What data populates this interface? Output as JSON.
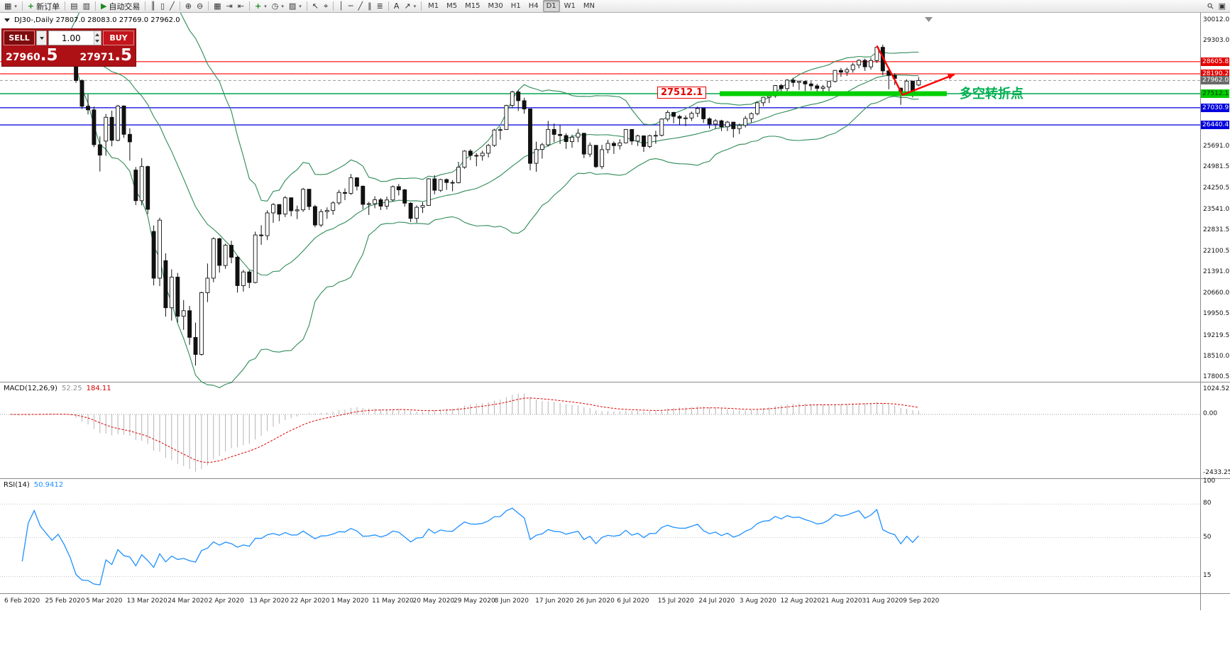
{
  "icons": {
    "dropdown": "▾"
  },
  "toolbar": {
    "items": [
      {
        "k": "btn",
        "name": "new-chart-button",
        "glyph": "▦",
        "dd": true
      },
      {
        "k": "sep"
      },
      {
        "k": "btn",
        "name": "new-order-button",
        "glyph": "+",
        "gc": "#1a8a1a",
        "label": "新订单"
      },
      {
        "k": "sep"
      },
      {
        "k": "btn",
        "name": "market-watch-button",
        "glyph": "▤"
      },
      {
        "k": "btn",
        "name": "data-window-button",
        "glyph": "▥"
      },
      {
        "k": "sep"
      },
      {
        "k": "btn",
        "name": "auto-trading-button",
        "glyph": "▶",
        "gc": "#1a8a1a",
        "label": "自动交易"
      },
      {
        "k": "sep"
      },
      {
        "k": "btn",
        "name": "bar-chart-type-button",
        "glyph": "║"
      },
      {
        "k": "btn",
        "name": "candlestick-type-button",
        "glyph": "▯"
      },
      {
        "k": "btn",
        "name": "line-chart-type-button",
        "glyph": "╱"
      },
      {
        "k": "sep"
      },
      {
        "k": "btn",
        "name": "zoom-in-button",
        "glyph": "⊕"
      },
      {
        "k": "btn",
        "name": "zoom-out-button",
        "glyph": "⊖"
      },
      {
        "k": "sep"
      },
      {
        "k": "btn",
        "name": "tile-windows-button",
        "glyph": "▦"
      },
      {
        "k": "btn",
        "name": "auto-scroll-button",
        "glyph": "⇥"
      },
      {
        "k": "btn",
        "name": "chart-shift-button",
        "glyph": "⇤"
      },
      {
        "k": "sep"
      },
      {
        "k": "btn",
        "name": "indicators-button",
        "glyph": "+",
        "gc": "#1a8a1a",
        "dd": true
      },
      {
        "k": "btn",
        "name": "periods-button",
        "glyph": "◷",
        "dd": true
      },
      {
        "k": "btn",
        "name": "templates-button",
        "glyph": "▨",
        "dd": true
      },
      {
        "k": "sep"
      },
      {
        "k": "btn",
        "name": "cursor-button",
        "glyph": "↖"
      },
      {
        "k": "btn",
        "name": "crosshair-button",
        "glyph": "⌖"
      },
      {
        "k": "sep"
      },
      {
        "k": "btn",
        "name": "vertical-line-button",
        "glyph": "│"
      },
      {
        "k": "btn",
        "name": "horizontal-line-button",
        "glyph": "─"
      },
      {
        "k": "btn",
        "name": "trendline-button",
        "glyph": "╱"
      },
      {
        "k": "btn",
        "name": "equidistant-channel-button",
        "glyph": "∥"
      },
      {
        "k": "btn",
        "name": "fibonacci-button",
        "glyph": "≣"
      },
      {
        "k": "sep"
      },
      {
        "k": "btn",
        "name": "text-tool-button",
        "glyph": "A"
      },
      {
        "k": "btn",
        "name": "arrows-tool-button",
        "glyph": "↗",
        "dd": true
      },
      {
        "k": "sep"
      },
      {
        "k": "tfs"
      },
      {
        "k": "flex"
      },
      {
        "k": "btn",
        "name": "search-button",
        "glyph": "⚲",
        "rot": true
      },
      {
        "k": "btn",
        "name": "window-layout-button",
        "glyph": "▣"
      }
    ],
    "timeframes": [
      "M1",
      "M5",
      "M15",
      "M30",
      "H1",
      "H4",
      "D1",
      "W1",
      "MN"
    ],
    "active_timeframe": "D1"
  },
  "chart": {
    "title": "DJ30-,Daily 27807.0 28083.0 27769.0 27962.0",
    "symbol": "DJ30-",
    "period": "Daily"
  },
  "one_click": {
    "sell_label": "SELL",
    "buy_label": "BUY",
    "volume": "1.00",
    "sell_price_main": "27960",
    "sell_price_frac": ".5",
    "buy_price_main": "27971",
    "buy_price_frac": ".5"
  },
  "price_axis": {
    "labels": [
      {
        "text": "30012.0",
        "price": 30012.0
      },
      {
        "text": "29303.0",
        "price": 29303.0
      },
      {
        "text": "25691.0",
        "price": 25691.0
      },
      {
        "text": "24981.5",
        "price": 24981.5
      },
      {
        "text": "24250.5",
        "price": 24250.5
      },
      {
        "text": "23541.0",
        "price": 23541.0
      },
      {
        "text": "22831.5",
        "price": 22831.5
      },
      {
        "text": "22100.5",
        "price": 22100.5
      },
      {
        "text": "21391.0",
        "price": 21391.0
      },
      {
        "text": "20660.0",
        "price": 20660.0
      },
      {
        "text": "19950.5",
        "price": 19950.5
      },
      {
        "text": "19219.5",
        "price": 19219.5
      },
      {
        "text": "18510.0",
        "price": 18510.0
      },
      {
        "text": "17800.5",
        "price": 17800.5
      }
    ],
    "badges": [
      {
        "text": "28605.8",
        "price": 28605.8,
        "bg": "#e30000",
        "fg": "#ffffff"
      },
      {
        "text": "28190.2",
        "price": 28190.2,
        "bg": "#e30000",
        "fg": "#ffffff"
      },
      {
        "text": "27962.0",
        "price": 27962.0,
        "bg": "#6b6b6b",
        "fg": "#ffffff"
      },
      {
        "text": "27512.1",
        "price": 27512.1,
        "bg": "#00cc00",
        "fg": "#00330a"
      },
      {
        "text": "27030.9",
        "price": 27030.9,
        "bg": "#0000dd",
        "fg": "#ffffff"
      },
      {
        "text": "26440.4",
        "price": 26440.4,
        "bg": "#0000dd",
        "fg": "#ffffff"
      }
    ]
  },
  "annotations": {
    "support_label": "27512.1",
    "note_text": "多空转折点",
    "note_color": "#00b050",
    "levels": {
      "red": [
        28605.8,
        28190.2
      ],
      "green": 27512.1,
      "blue": [
        27030.9,
        26440.4
      ],
      "current": 27962.0
    },
    "band": {
      "price": 27512.1,
      "from_index": 119,
      "to_index": 157,
      "color": "#00cf00"
    },
    "arrow": {
      "points": [
        [
          145,
          29150
        ],
        [
          149.3,
          27470
        ],
        [
          158,
          28170
        ]
      ],
      "color": "#ff0000"
    }
  },
  "macd": {
    "name": "MACD(12,26,9)",
    "main_value": "52.25",
    "signal_value": "184.11",
    "axis_labels": [
      "1024.52",
      "0.00",
      "-2433.25"
    ]
  },
  "rsi": {
    "name": "RSI(14)",
    "value": "50.9412",
    "axis_labels": [
      "100",
      "80",
      "50",
      "15"
    ],
    "levels": [
      80,
      50,
      15
    ]
  },
  "chart_data": {
    "type": "candlestick",
    "title": "DJ30- Daily",
    "ylim": [
      17690,
      30130
    ],
    "last_ohlc": {
      "open": 27807.0,
      "high": 28083.0,
      "low": 27769.0,
      "close": 27962.0
    },
    "overlays": [
      {
        "name": "Bollinger Bands",
        "period": 20,
        "deviation": 2,
        "color": "#2e8b57"
      }
    ],
    "sub_charts": [
      {
        "type": "macd",
        "params": "12,26,9",
        "shown_values": [
          52.25,
          184.11
        ],
        "range": [
          -2433.25,
          1024.52
        ]
      },
      {
        "type": "rsi",
        "params": "14",
        "shown_value": 50.9412,
        "range": [
          0,
          100
        ],
        "levels": [
          80,
          50,
          15
        ]
      }
    ],
    "x_labels": [
      "6 Feb 2020",
      "25 Feb 2020",
      "5 Mar 2020",
      "13 Mar 2020",
      "24 Mar 2020",
      "2 Apr 2020",
      "13 Apr 2020",
      "22 Apr 2020",
      "1 May 2020",
      "11 May 2020",
      "20 May 2020",
      "29 May 2020",
      "8 Jun 2020",
      "17 Jun 2020",
      "26 Jun 2020",
      "6 Jul 2020",
      "15 Jul 2020",
      "24 Jul 2020",
      "3 Aug 2020",
      "12 Aug 2020",
      "21 Aug 2020",
      "31 Aug 2020",
      "9 Sep 2020"
    ],
    "candles": [
      [
        29290,
        29410,
        29230,
        29380
      ],
      [
        29380,
        29420,
        29190,
        29280
      ],
      [
        29280,
        29390,
        29240,
        29320
      ],
      [
        29320,
        29480,
        29300,
        29450
      ],
      [
        29450,
        29590,
        29400,
        29568
      ],
      [
        29568,
        29590,
        29420,
        29480
      ],
      [
        29480,
        29520,
        29350,
        29420
      ],
      [
        29420,
        29450,
        29260,
        29350
      ],
      [
        29350,
        29460,
        29300,
        29420
      ],
      [
        29420,
        29450,
        29150,
        29280
      ],
      [
        29280,
        29300,
        28890,
        28990
      ],
      [
        28700,
        28730,
        27880,
        27960
      ],
      [
        27960,
        28000,
        26990,
        27081
      ],
      [
        27081,
        27490,
        26800,
        26957
      ],
      [
        26957,
        27070,
        25680,
        25766
      ],
      [
        25766,
        26050,
        24850,
        25409
      ],
      [
        25890,
        26820,
        25390,
        26703
      ],
      [
        26703,
        26930,
        25710,
        25917
      ],
      [
        25917,
        27130,
        25880,
        27090
      ],
      [
        27090,
        27110,
        26000,
        26121
      ],
      [
        26121,
        26330,
        25220,
        25864
      ],
      [
        24900,
        25000,
        23700,
        23851
      ],
      [
        23851,
        25310,
        23690,
        25018
      ],
      [
        25018,
        25050,
        23390,
        23553
      ],
      [
        22800,
        23000,
        20950,
        21200
      ],
      [
        21200,
        23270,
        20930,
        23185
      ],
      [
        21800,
        22050,
        19880,
        20188
      ],
      [
        20188,
        21500,
        19750,
        21237
      ],
      [
        21237,
        21380,
        19680,
        19898
      ],
      [
        19898,
        20450,
        19430,
        20087
      ],
      [
        20087,
        20250,
        18920,
        19173
      ],
      [
        19173,
        19680,
        18210,
        18591
      ],
      [
        18591,
        20740,
        18550,
        20704
      ],
      [
        20704,
        21700,
        20380,
        21200
      ],
      [
        21200,
        22600,
        21060,
        22552
      ],
      [
        22552,
        22580,
        21390,
        21636
      ],
      [
        21636,
        22380,
        21520,
        22327
      ],
      [
        22327,
        22480,
        21710,
        21917
      ],
      [
        21917,
        21960,
        20710,
        20943
      ],
      [
        20943,
        21480,
        20740,
        21413
      ],
      [
        21413,
        21470,
        20860,
        21052
      ],
      [
        21052,
        22790,
        21020,
        22679
      ],
      [
        22679,
        23010,
        22340,
        22653
      ],
      [
        22653,
        23520,
        22500,
        23433
      ],
      [
        23433,
        23770,
        23090,
        23719
      ],
      [
        23719,
        23730,
        23150,
        23390
      ],
      [
        23390,
        24010,
        23290,
        23949
      ],
      [
        23949,
        23960,
        23320,
        23504
      ],
      [
        23504,
        23680,
        23220,
        23537
      ],
      [
        23537,
        24290,
        23470,
        24242
      ],
      [
        24242,
        24250,
        23530,
        23650
      ],
      [
        23650,
        23710,
        22940,
        23018
      ],
      [
        23018,
        23560,
        22950,
        23475
      ],
      [
        23475,
        23620,
        23230,
        23515
      ],
      [
        23515,
        23830,
        23370,
        23775
      ],
      [
        23775,
        24220,
        23710,
        24133
      ],
      [
        24133,
        24270,
        23870,
        24101
      ],
      [
        24101,
        24760,
        24050,
        24633
      ],
      [
        24633,
        24660,
        24200,
        24345
      ],
      [
        24345,
        24370,
        23560,
        23723
      ],
      [
        23723,
        23810,
        23360,
        23749
      ],
      [
        23749,
        24000,
        23590,
        23883
      ],
      [
        23883,
        23940,
        23530,
        23664
      ],
      [
        23664,
        23990,
        23550,
        23875
      ],
      [
        23875,
        24370,
        23830,
        24331
      ],
      [
        24331,
        24420,
        24030,
        24221
      ],
      [
        24221,
        24250,
        23650,
        23764
      ],
      [
        23764,
        23800,
        23120,
        23247
      ],
      [
        23247,
        23690,
        23100,
        23625
      ],
      [
        23625,
        23800,
        23430,
        23685
      ],
      [
        23685,
        24620,
        23670,
        24597
      ],
      [
        24597,
        24720,
        24070,
        24206
      ],
      [
        24206,
        24600,
        24150,
        24575
      ],
      [
        24575,
        24610,
        24220,
        24474
      ],
      [
        24474,
        24560,
        24170,
        24465
      ],
      [
        24465,
        25180,
        24440,
        24995
      ],
      [
        24995,
        25580,
        24940,
        25548
      ],
      [
        25548,
        25610,
        25240,
        25400
      ],
      [
        25400,
        25480,
        25030,
        25383
      ],
      [
        25383,
        25560,
        25220,
        25475
      ],
      [
        25475,
        25790,
        25330,
        25742
      ],
      [
        25742,
        26310,
        25690,
        26269
      ],
      [
        26269,
        26380,
        25940,
        26281
      ],
      [
        26281,
        27130,
        26280,
        27110
      ],
      [
        27110,
        27610,
        27020,
        27572
      ],
      [
        27572,
        27640,
        26920,
        27272
      ],
      [
        27272,
        27370,
        26830,
        26989
      ],
      [
        26989,
        27000,
        24890,
        25128
      ],
      [
        25128,
        25870,
        24840,
        25605
      ],
      [
        25605,
        25830,
        25290,
        25763
      ],
      [
        25763,
        26580,
        25700,
        26289
      ],
      [
        26289,
        26490,
        25850,
        26119
      ],
      [
        26119,
        26430,
        25790,
        26080
      ],
      [
        26080,
        26160,
        25620,
        25871
      ],
      [
        25871,
        26110,
        25660,
        26024
      ],
      [
        26024,
        26310,
        25850,
        26156
      ],
      [
        26156,
        26170,
        25310,
        25445
      ],
      [
        25445,
        25840,
        25340,
        25745
      ],
      [
        25745,
        25750,
        24970,
        25015
      ],
      [
        25015,
        25760,
        24930,
        25595
      ],
      [
        25595,
        25930,
        25470,
        25812
      ],
      [
        25812,
        25880,
        25450,
        25734
      ],
      [
        25734,
        25950,
        25600,
        25827
      ],
      [
        25827,
        26300,
        25810,
        26287
      ],
      [
        26287,
        26290,
        25760,
        25890
      ],
      [
        25890,
        26110,
        25720,
        26067
      ],
      [
        26067,
        26090,
        25520,
        25706
      ],
      [
        25706,
        26110,
        25650,
        26075
      ],
      [
        26075,
        26240,
        25800,
        26085
      ],
      [
        26085,
        26670,
        26050,
        26642
      ],
      [
        26642,
        26940,
        26560,
        26870
      ],
      [
        26870,
        26890,
        26500,
        26734
      ],
      [
        26734,
        26780,
        26440,
        26671
      ],
      [
        26671,
        26770,
        26400,
        26680
      ],
      [
        26680,
        26900,
        26580,
        26840
      ],
      [
        26840,
        27070,
        26710,
        27005
      ],
      [
        27005,
        27020,
        26510,
        26652
      ],
      [
        26652,
        26700,
        26320,
        26469
      ],
      [
        26469,
        26640,
        26310,
        26584
      ],
      [
        26584,
        26620,
        26230,
        26379
      ],
      [
        26379,
        26580,
        26230,
        26539
      ],
      [
        26539,
        26550,
        26010,
        26313
      ],
      [
        26313,
        26490,
        26130,
        26428
      ],
      [
        26428,
        26750,
        26350,
        26664
      ],
      [
        26664,
        26870,
        26520,
        26828
      ],
      [
        26828,
        27230,
        26770,
        27201
      ],
      [
        27201,
        27400,
        27080,
        27386
      ],
      [
        27386,
        27480,
        27190,
        27433
      ],
      [
        27433,
        27810,
        27370,
        27791
      ],
      [
        27791,
        27850,
        27560,
        27686
      ],
      [
        27686,
        28010,
        27600,
        27976
      ],
      [
        27976,
        28050,
        27750,
        27896
      ],
      [
        27896,
        27960,
        27640,
        27931
      ],
      [
        27931,
        27960,
        27600,
        27844
      ],
      [
        27844,
        27940,
        27620,
        27778
      ],
      [
        27778,
        27850,
        27510,
        27692
      ],
      [
        27692,
        27810,
        27490,
        27739
      ],
      [
        27739,
        27950,
        27600,
        27930
      ],
      [
        27930,
        28320,
        27890,
        28308
      ],
      [
        28308,
        28390,
        28090,
        28248
      ],
      [
        28248,
        28400,
        28120,
        28331
      ],
      [
        28331,
        28570,
        28230,
        28492
      ],
      [
        28492,
        28690,
        28380,
        28653
      ],
      [
        28653,
        28710,
        28290,
        28430
      ],
      [
        28430,
        28740,
        28330,
        28645
      ],
      [
        28645,
        29130,
        28560,
        29100
      ],
      [
        29100,
        29190,
        28140,
        28292
      ],
      [
        28292,
        28400,
        27660,
        28133
      ],
      [
        28133,
        28210,
        27810,
        28030
      ],
      [
        27700,
        27720,
        27130,
        27500
      ],
      [
        27500,
        28000,
        27450,
        27940
      ],
      [
        27940,
        27960,
        27380,
        27534
      ],
      [
        27807,
        28083,
        27769,
        27962
      ]
    ]
  }
}
